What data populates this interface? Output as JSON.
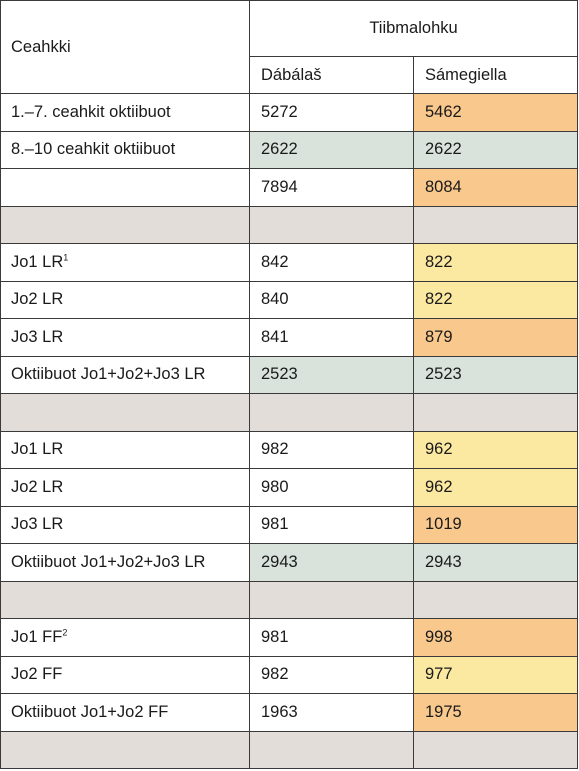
{
  "header": {
    "ceahkki": "Ceahkki",
    "group": "Tiibmalohku",
    "col_dabalas": "Dábálaš",
    "col_samegiella": "Sámegiella"
  },
  "colors": {
    "green": "#d9e3db",
    "orange": "#f9c88c",
    "yellow": "#fbe9a2",
    "gray": "#e2ddd9"
  },
  "rows": [
    {
      "label": "1.–7. ceahkit oktiibuot",
      "sup": "",
      "dabalas": "5272",
      "samegiella": "5462",
      "label_bg": "",
      "dab_bg": "",
      "sam_bg": "orange"
    },
    {
      "label": "8.–10 ceahkit oktiibuot",
      "sup": "",
      "dabalas": "2622",
      "samegiella": "2622",
      "label_bg": "",
      "dab_bg": "green",
      "sam_bg": "green"
    },
    {
      "label": "",
      "sup": "",
      "dabalas": "7894",
      "samegiella": "8084",
      "label_bg": "",
      "dab_bg": "",
      "sam_bg": "orange"
    },
    {
      "label": "",
      "sup": "",
      "dabalas": "",
      "samegiella": "",
      "label_bg": "gray",
      "dab_bg": "gray",
      "sam_bg": "gray"
    },
    {
      "label": "Jo1 LR",
      "sup": "1",
      "dabalas": "842",
      "samegiella": "822",
      "label_bg": "",
      "dab_bg": "",
      "sam_bg": "yellow"
    },
    {
      "label": "Jo2 LR",
      "sup": "",
      "dabalas": "840",
      "samegiella": "822",
      "label_bg": "",
      "dab_bg": "",
      "sam_bg": "yellow"
    },
    {
      "label": "Jo3 LR",
      "sup": "",
      "dabalas": "841",
      "samegiella": "879",
      "label_bg": "",
      "dab_bg": "",
      "sam_bg": "orange"
    },
    {
      "label": "Oktiibuot Jo1+Jo2+Jo3 LR",
      "sup": "",
      "dabalas": "2523",
      "samegiella": "2523",
      "label_bg": "",
      "dab_bg": "green",
      "sam_bg": "green"
    },
    {
      "label": "",
      "sup": "",
      "dabalas": "",
      "samegiella": "",
      "label_bg": "gray",
      "dab_bg": "gray",
      "sam_bg": "gray"
    },
    {
      "label": "Jo1 LR",
      "sup": "",
      "dabalas": "982",
      "samegiella": "962",
      "label_bg": "",
      "dab_bg": "",
      "sam_bg": "yellow"
    },
    {
      "label": "Jo2 LR",
      "sup": "",
      "dabalas": "980",
      "samegiella": "962",
      "label_bg": "",
      "dab_bg": "",
      "sam_bg": "yellow"
    },
    {
      "label": "Jo3 LR",
      "sup": "",
      "dabalas": "981",
      "samegiella": "1019",
      "label_bg": "",
      "dab_bg": "",
      "sam_bg": "orange"
    },
    {
      "label": "Oktiibuot Jo1+Jo2+Jo3 LR",
      "sup": "",
      "dabalas": "2943",
      "samegiella": "2943",
      "label_bg": "",
      "dab_bg": "green",
      "sam_bg": "green"
    },
    {
      "label": "",
      "sup": "",
      "dabalas": "",
      "samegiella": "",
      "label_bg": "gray",
      "dab_bg": "gray",
      "sam_bg": "gray"
    },
    {
      "label": "Jo1 FF",
      "sup": "2",
      "dabalas": "981",
      "samegiella": "998",
      "label_bg": "",
      "dab_bg": "",
      "sam_bg": "orange"
    },
    {
      "label": "Jo2 FF",
      "sup": "",
      "dabalas": "982",
      "samegiella": "977",
      "label_bg": "",
      "dab_bg": "",
      "sam_bg": "yellow"
    },
    {
      "label": "Oktiibuot Jo1+Jo2 FF",
      "sup": "",
      "dabalas": "1963",
      "samegiella": "1975",
      "label_bg": "",
      "dab_bg": "",
      "sam_bg": "orange"
    },
    {
      "label": "",
      "sup": "",
      "dabalas": "",
      "samegiella": "",
      "label_bg": "gray",
      "dab_bg": "gray",
      "sam_bg": "gray"
    }
  ]
}
